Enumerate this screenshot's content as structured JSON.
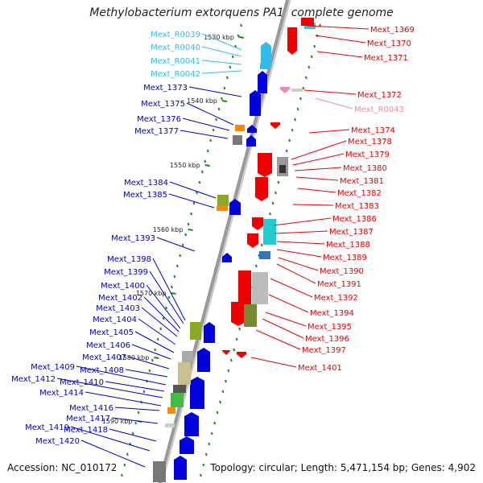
{
  "header": {
    "title": "Methylobacterium extorquens PA1, complete genome"
  },
  "footer": {
    "accession": "Accession: NC_010172",
    "topology": "Topology: circular; Length: 5,471,154 bp; Genes: 4,902"
  },
  "colors": {
    "rna": "#33bbee",
    "forward_gene": "#0000dd",
    "reverse_gene": "#ee0000",
    "pseudo": "#ee88bb",
    "backbone": "#999999",
    "tick": "#228822"
  },
  "scale_labels": [
    "1530 kbp",
    "1540 kbp",
    "1550 kbp",
    "1560 kbp",
    "1570 kbp",
    "1580 kbp",
    "1590 kbp"
  ],
  "left_labels": [
    "Mext_R0039",
    "Mext_R0040",
    "Mext_R0041",
    "Mext_R0042",
    "Mext_1373",
    "Mext_1375",
    "Mext_1376",
    "Mext_1377",
    "Mext_1384",
    "Mext_1385",
    "Mext_1393",
    "Mext_1398",
    "Mext_1399",
    "Mext_1400",
    "Mext_1402",
    "Mext_1403",
    "Mext_1404",
    "Mext_1405",
    "Mext_1406",
    "Mext_1407",
    "Mext_1408",
    "Mext_1409",
    "Mext_1410",
    "Mext_1412",
    "Mext_1414",
    "Mext_1416",
    "Mext_1417",
    "Mext_1418",
    "Mext_1419",
    "Mext_1420"
  ],
  "right_labels": [
    "Mext_1369",
    "Mext_1370",
    "Mext_1371",
    "Mext_1372",
    "Mext_R0043",
    "Mext_1374",
    "Mext_1378",
    "Mext_1379",
    "Mext_1380",
    "Mext_1381",
    "Mext_1382",
    "Mext_1383",
    "Mext_1386",
    "Mext_1387",
    "Mext_1388",
    "Mext_1389",
    "Mext_1390",
    "Mext_1391",
    "Mext_1392",
    "Mext_1394",
    "Mext_1395",
    "Mext_1396",
    "Mext_1397",
    "Mext_1401"
  ]
}
